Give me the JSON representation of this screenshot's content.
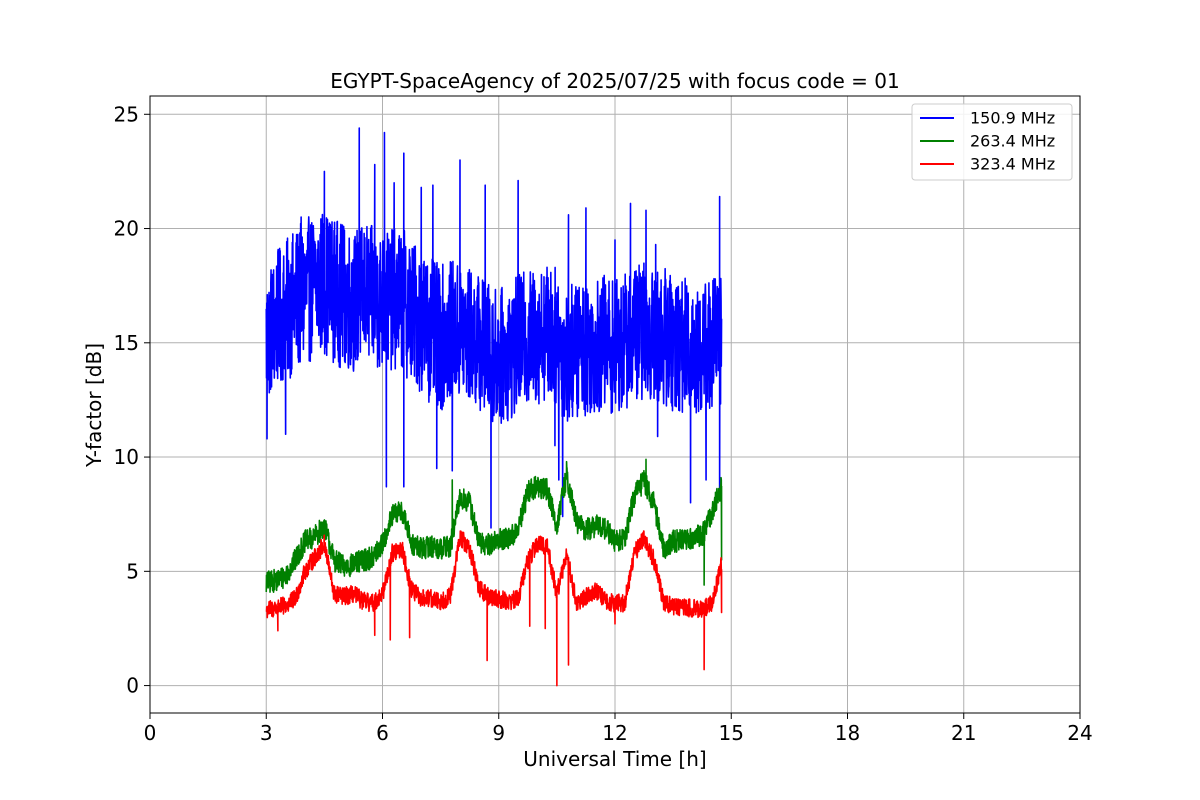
{
  "chart_data": {
    "type": "line",
    "title": "EGYPT-SpaceAgency of 2025/07/25 with focus code = 01",
    "xlabel": "Universal Time [h]",
    "ylabel": "Y-factor [dB]",
    "xlim": [
      0,
      24
    ],
    "ylim": [
      -1.2,
      25.8
    ],
    "xticks": [
      0,
      3,
      6,
      9,
      12,
      15,
      18,
      21,
      24
    ],
    "yticks": [
      0,
      5,
      10,
      15,
      20,
      25
    ],
    "grid": true,
    "legend_position": "top-right",
    "series": [
      {
        "name": "150.9 MHz",
        "color": "#0000ff",
        "x": [
          3.0,
          3.25,
          3.5,
          3.75,
          4.0,
          4.25,
          4.5,
          4.75,
          5.0,
          5.25,
          5.5,
          5.75,
          6.0,
          6.25,
          6.5,
          6.75,
          7.0,
          7.25,
          7.5,
          7.75,
          8.0,
          8.25,
          8.5,
          8.75,
          9.0,
          9.25,
          9.5,
          9.75,
          10.0,
          10.25,
          10.5,
          10.75,
          11.0,
          11.25,
          11.5,
          11.75,
          12.0,
          12.25,
          12.5,
          12.75,
          13.0,
          13.25,
          13.5,
          13.75,
          14.0,
          14.25,
          14.5,
          14.75
        ],
        "center": [
          15.2,
          16.0,
          16.4,
          16.8,
          17.2,
          17.5,
          17.7,
          17.3,
          17.0,
          16.8,
          17.2,
          17.0,
          16.8,
          16.9,
          16.9,
          16.4,
          16.0,
          15.5,
          15.2,
          15.5,
          15.4,
          15.3,
          15.0,
          14.6,
          14.4,
          14.5,
          15.0,
          15.2,
          15.3,
          15.5,
          15.2,
          14.5,
          14.7,
          14.8,
          14.9,
          15.0,
          14.8,
          15.0,
          15.5,
          15.5,
          15.3,
          15.3,
          15.0,
          14.9,
          14.8,
          14.7,
          15.0,
          15.3
        ],
        "spread": [
          3.0,
          3.0,
          3.1,
          3.2,
          3.2,
          3.2,
          3.2,
          3.2,
          3.2,
          3.1,
          3.1,
          3.1,
          3.1,
          3.1,
          3.2,
          3.2,
          3.2,
          3.2,
          3.2,
          3.1,
          3.1,
          3.0,
          3.0,
          3.0,
          3.0,
          3.0,
          3.0,
          3.0,
          3.0,
          3.0,
          3.1,
          3.1,
          3.0,
          3.0,
          3.0,
          3.0,
          3.0,
          3.0,
          3.0,
          3.0,
          3.0,
          3.0,
          3.0,
          3.0,
          3.0,
          3.0,
          3.0,
          3.0
        ],
        "spikes": [
          [
            3.02,
            10.8
          ],
          [
            3.5,
            11.0
          ],
          [
            3.9,
            20.5
          ],
          [
            4.5,
            22.5
          ],
          [
            5.4,
            24.4
          ],
          [
            5.8,
            22.8
          ],
          [
            6.05,
            24.2
          ],
          [
            6.1,
            8.7
          ],
          [
            6.3,
            22.0
          ],
          [
            6.55,
            23.3
          ],
          [
            6.55,
            8.7
          ],
          [
            7.0,
            21.8
          ],
          [
            7.3,
            21.9
          ],
          [
            7.4,
            9.5
          ],
          [
            7.8,
            9.4
          ],
          [
            8.0,
            23.0
          ],
          [
            8.65,
            21.9
          ],
          [
            8.8,
            6.9
          ],
          [
            8.95,
            12.0
          ],
          [
            9.5,
            22.1
          ],
          [
            10.45,
            10.5
          ],
          [
            10.55,
            9.0
          ],
          [
            10.65,
            7.4
          ],
          [
            10.8,
            20.6
          ],
          [
            11.25,
            20.9
          ],
          [
            12.0,
            19.5
          ],
          [
            12.4,
            21.1
          ],
          [
            12.8,
            20.8
          ],
          [
            13.05,
            19.3
          ],
          [
            13.1,
            10.9
          ],
          [
            13.95,
            8.0
          ],
          [
            14.35,
            9.0
          ],
          [
            14.7,
            21.4
          ],
          [
            14.7,
            8.5
          ]
        ]
      },
      {
        "name": "263.4 MHz",
        "color": "#008000",
        "x": [
          3.0,
          3.25,
          3.5,
          3.75,
          4.0,
          4.25,
          4.5,
          4.75,
          5.0,
          5.25,
          5.5,
          5.75,
          6.0,
          6.25,
          6.5,
          6.75,
          7.0,
          7.25,
          7.5,
          7.75,
          8.0,
          8.25,
          8.5,
          8.75,
          9.0,
          9.25,
          9.5,
          9.75,
          10.0,
          10.25,
          10.5,
          10.75,
          11.0,
          11.25,
          11.5,
          11.75,
          12.0,
          12.25,
          12.5,
          12.75,
          13.0,
          13.25,
          13.5,
          13.75,
          14.0,
          14.25,
          14.5,
          14.75
        ],
        "center": [
          4.5,
          4.6,
          4.8,
          5.5,
          6.3,
          6.5,
          7.0,
          5.5,
          5.2,
          5.3,
          5.5,
          5.6,
          6.2,
          7.4,
          7.7,
          6.2,
          6.0,
          6.1,
          6.0,
          6.1,
          8.2,
          8.0,
          6.2,
          6.2,
          6.4,
          6.4,
          6.8,
          8.5,
          8.7,
          8.6,
          7.0,
          9.2,
          7.2,
          6.8,
          7.0,
          6.9,
          6.3,
          6.4,
          8.3,
          9.0,
          8.0,
          6.0,
          6.3,
          6.4,
          6.5,
          6.6,
          7.5,
          8.8
        ],
        "spread": [
          0.5,
          0.5,
          0.5,
          0.5,
          0.5,
          0.5,
          0.5,
          0.5,
          0.5,
          0.5,
          0.5,
          0.5,
          0.5,
          0.5,
          0.5,
          0.5,
          0.5,
          0.5,
          0.5,
          0.5,
          0.5,
          0.5,
          0.5,
          0.5,
          0.5,
          0.5,
          0.5,
          0.5,
          0.5,
          0.5,
          0.5,
          0.5,
          0.5,
          0.5,
          0.5,
          0.5,
          0.5,
          0.5,
          0.5,
          0.5,
          0.5,
          0.5,
          0.5,
          0.5,
          0.5,
          0.5,
          0.5,
          0.5
        ],
        "spikes": [
          [
            7.8,
            9.0
          ],
          [
            10.75,
            9.8
          ],
          [
            12.8,
            9.9
          ],
          [
            14.3,
            4.4
          ],
          [
            14.75,
            5.5
          ]
        ]
      },
      {
        "name": "323.4 MHz",
        "color": "#ff0000",
        "x": [
          3.0,
          3.25,
          3.5,
          3.75,
          4.0,
          4.25,
          4.5,
          4.75,
          5.0,
          5.25,
          5.5,
          5.75,
          6.0,
          6.25,
          6.5,
          6.75,
          7.0,
          7.25,
          7.5,
          7.75,
          8.0,
          8.25,
          8.5,
          8.75,
          9.0,
          9.25,
          9.5,
          9.75,
          10.0,
          10.25,
          10.5,
          10.75,
          11.0,
          11.25,
          11.5,
          11.75,
          12.0,
          12.25,
          12.5,
          12.75,
          13.0,
          13.25,
          13.5,
          13.75,
          14.0,
          14.25,
          14.5,
          14.75
        ],
        "center": [
          3.3,
          3.4,
          3.5,
          3.8,
          5.0,
          5.6,
          6.2,
          4.0,
          3.9,
          4.0,
          3.7,
          3.6,
          4.0,
          5.8,
          6.0,
          4.2,
          3.8,
          3.8,
          3.7,
          3.9,
          6.5,
          6.0,
          4.2,
          3.9,
          3.8,
          3.7,
          3.8,
          5.5,
          6.2,
          6.1,
          4.0,
          5.8,
          3.6,
          3.9,
          4.2,
          3.7,
          3.6,
          3.6,
          5.8,
          6.5,
          5.5,
          3.7,
          3.5,
          3.4,
          3.4,
          3.3,
          3.6,
          5.3
        ],
        "spread": [
          0.4,
          0.4,
          0.4,
          0.4,
          0.4,
          0.4,
          0.4,
          0.4,
          0.4,
          0.4,
          0.4,
          0.4,
          0.4,
          0.4,
          0.4,
          0.4,
          0.4,
          0.4,
          0.4,
          0.4,
          0.4,
          0.4,
          0.4,
          0.4,
          0.4,
          0.4,
          0.4,
          0.4,
          0.4,
          0.4,
          0.4,
          0.4,
          0.4,
          0.4,
          0.4,
          0.4,
          0.4,
          0.4,
          0.4,
          0.4,
          0.4,
          0.4,
          0.4,
          0.4,
          0.4,
          0.4,
          0.4,
          0.4
        ],
        "spikes": [
          [
            3.3,
            2.4
          ],
          [
            5.8,
            2.2
          ],
          [
            6.2,
            2.0
          ],
          [
            6.7,
            2.1
          ],
          [
            8.7,
            1.1
          ],
          [
            9.8,
            2.6
          ],
          [
            10.2,
            2.5
          ],
          [
            10.5,
            0.0
          ],
          [
            10.8,
            0.9
          ],
          [
            12.0,
            2.7
          ],
          [
            14.3,
            0.7
          ],
          [
            14.75,
            3.2
          ]
        ]
      }
    ]
  }
}
